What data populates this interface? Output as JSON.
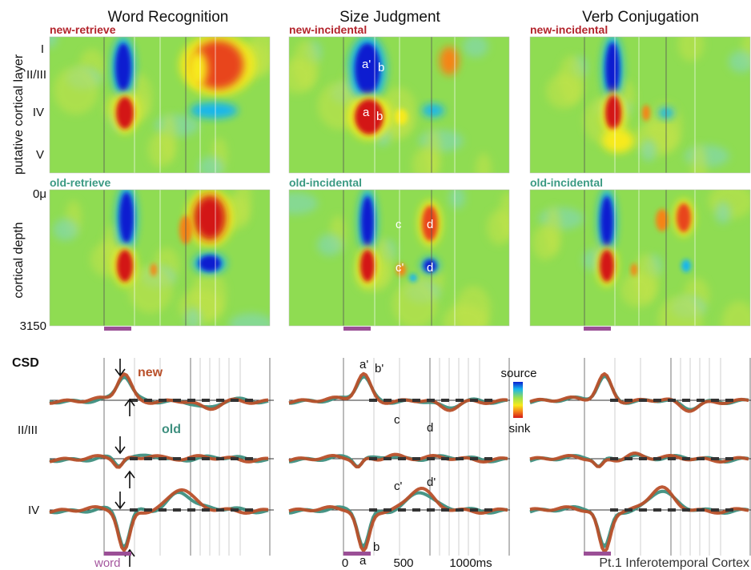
{
  "columns": [
    {
      "title": "Word Recognition",
      "top_label": "new-retrieve",
      "bottom_label": "old-retrieve"
    },
    {
      "title": "Size Judgment",
      "top_label": "new-incidental",
      "bottom_label": "old-incidental"
    },
    {
      "title": "Verb Conjugation",
      "top_label": "new-incidental",
      "bottom_label": "old-incidental"
    }
  ],
  "y_axis": {
    "top_title": "putative cortical layer",
    "bottom_title": "cortical depth",
    "layers": [
      "I",
      "II/III",
      "IV",
      "V"
    ],
    "depth_top": "0μ",
    "depth_bottom": "3150"
  },
  "annotations": {
    "a_prime": "a'",
    "b": "b",
    "a": "a",
    "c": "c",
    "d": "d",
    "c_prime": "c'",
    "b_prime": "b'",
    "d_prime": "d'"
  },
  "csd": {
    "title": "CSD",
    "legend_new": "new",
    "legend_old": "old",
    "row_labels": [
      "II/III",
      "IV"
    ],
    "colorbar_top": "source",
    "colorbar_bottom": "sink",
    "word_label": "word",
    "time_ticks": [
      "0",
      "500",
      "1000ms"
    ],
    "caption": "Pt.1 Inferotemporal Cortex"
  },
  "colors": {
    "new": "#b9502a",
    "old": "#3e8f7f",
    "title_new": "#b3242c",
    "title_old": "#3b9a83",
    "stim_bar": "#9b4f96",
    "word_label": "#a4569e"
  }
}
